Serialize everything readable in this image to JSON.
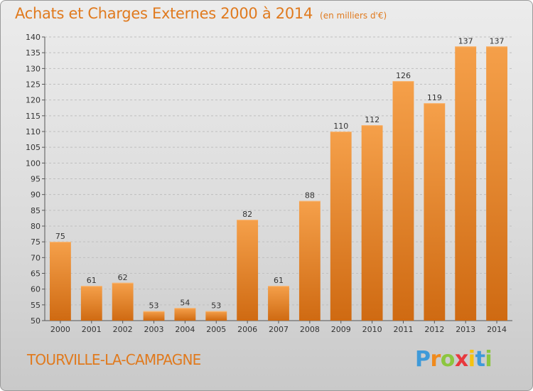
{
  "chart_data": {
    "type": "bar",
    "title": "Achats et Charges Externes 2000 à 2014",
    "subtitle": "(en milliers d'€)",
    "categories": [
      "2000",
      "2001",
      "2002",
      "2003",
      "2004",
      "2005",
      "2006",
      "2007",
      "2008",
      "2009",
      "2010",
      "2011",
      "2012",
      "2013",
      "2014"
    ],
    "values": [
      75,
      61,
      62,
      53,
      54,
      53,
      82,
      61,
      88,
      110,
      112,
      126,
      119,
      137,
      137
    ],
    "ylim": [
      50,
      140
    ],
    "yticks": [
      50,
      55,
      60,
      65,
      70,
      75,
      80,
      85,
      90,
      95,
      100,
      105,
      110,
      115,
      120,
      125,
      130,
      135,
      140
    ],
    "grid": true,
    "bar_color": "#f0902f",
    "bar_color_dark": "#d06a12"
  },
  "commune": "TOURVILLE-LA-CAMPAGNE",
  "logo": {
    "letters": [
      "P",
      "r",
      "o",
      "x",
      "i",
      "t",
      "i"
    ],
    "colors": [
      "#3e9ad9",
      "#f08a1c",
      "#8cc63f",
      "#e8383d",
      "#f5c211",
      "#3e9ad9",
      "#8cc63f"
    ]
  },
  "colors": {
    "title": "#e07a1e",
    "axis": "#333333"
  }
}
